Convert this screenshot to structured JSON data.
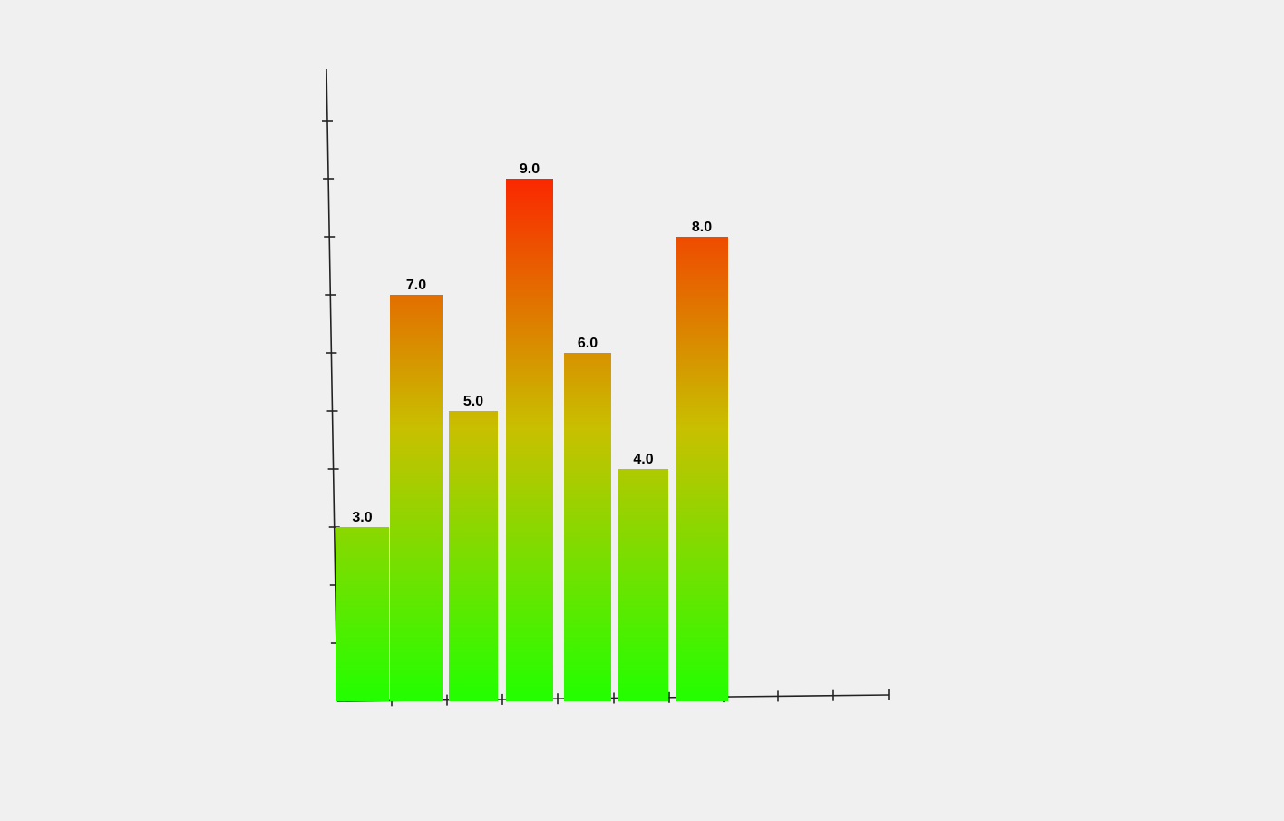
{
  "chart_data": {
    "type": "bar",
    "categories": [
      "",
      "",
      "",
      "",
      "",
      "",
      ""
    ],
    "values": [
      3.0,
      7.0,
      5.0,
      9.0,
      6.0,
      4.0,
      8.0
    ],
    "data_labels": [
      "3.0",
      "7.0",
      "5.0",
      "9.0",
      "6.0",
      "4.0",
      "8.0"
    ],
    "title": "",
    "xlabel": "",
    "ylabel": "",
    "ylim": [
      0,
      10
    ],
    "grid": false,
    "legend": "none",
    "color_gradient": {
      "low": "#22ff00",
      "mid": "#c8c000",
      "high": "#ff1a00"
    }
  }
}
